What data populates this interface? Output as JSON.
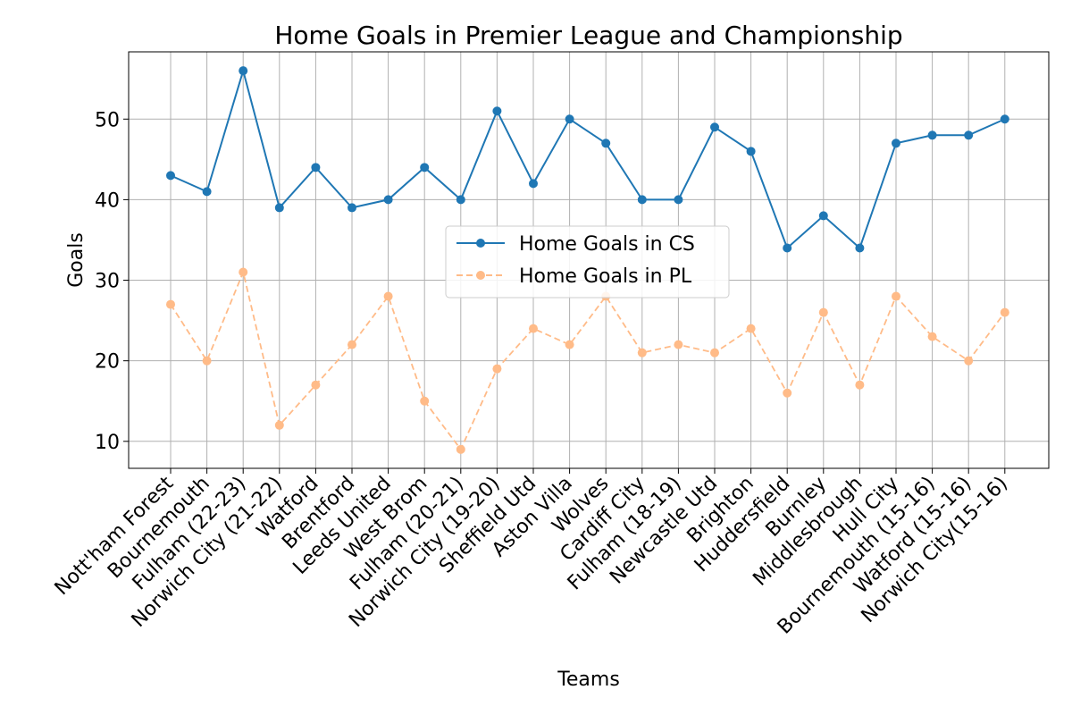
{
  "chart_data": {
    "type": "line",
    "title": "Home Goals in Premier League and Championship",
    "xlabel": "Teams",
    "ylabel": "Goals",
    "categories": [
      "Nott'ham Forest",
      "Bournemouth",
      "Fulham (22-23)",
      "Norwich City (21-22)",
      "Watford",
      "Brentford",
      "Leeds United",
      "West Brom",
      "Fulham (20-21)",
      "Norwich City (19-20)",
      "Sheffield Utd",
      "Aston Villa",
      "Wolves",
      "Cardiff City",
      "Fulham (18-19)",
      "Newcastle Utd",
      "Brighton",
      "Huddersfield",
      "Burnley",
      "Middlesbrough",
      "Hull City",
      "Bournemouth (15-16)",
      "Watford (15-16)",
      "Norwich City(15-16)"
    ],
    "series": [
      {
        "name": "Home Goals in CS",
        "values": [
          43,
          41,
          56,
          39,
          44,
          39,
          40,
          44,
          40,
          51,
          42,
          50,
          47,
          40,
          40,
          49,
          46,
          34,
          38,
          34,
          47,
          48,
          48,
          50
        ],
        "color": "#1f77b4",
        "style": "solid"
      },
      {
        "name": "Home Goals in PL",
        "values": [
          27,
          20,
          31,
          12,
          17,
          22,
          28,
          15,
          9,
          19,
          24,
          22,
          28,
          21,
          22,
          21,
          24,
          16,
          26,
          17,
          28,
          23,
          20,
          26
        ],
        "color": "#ffbb88",
        "style": "dashed"
      }
    ],
    "ylim": [
      6.65,
      58.35
    ],
    "yticks": [
      10,
      20,
      30,
      40,
      50
    ],
    "grid": true,
    "legend_position": "center"
  }
}
